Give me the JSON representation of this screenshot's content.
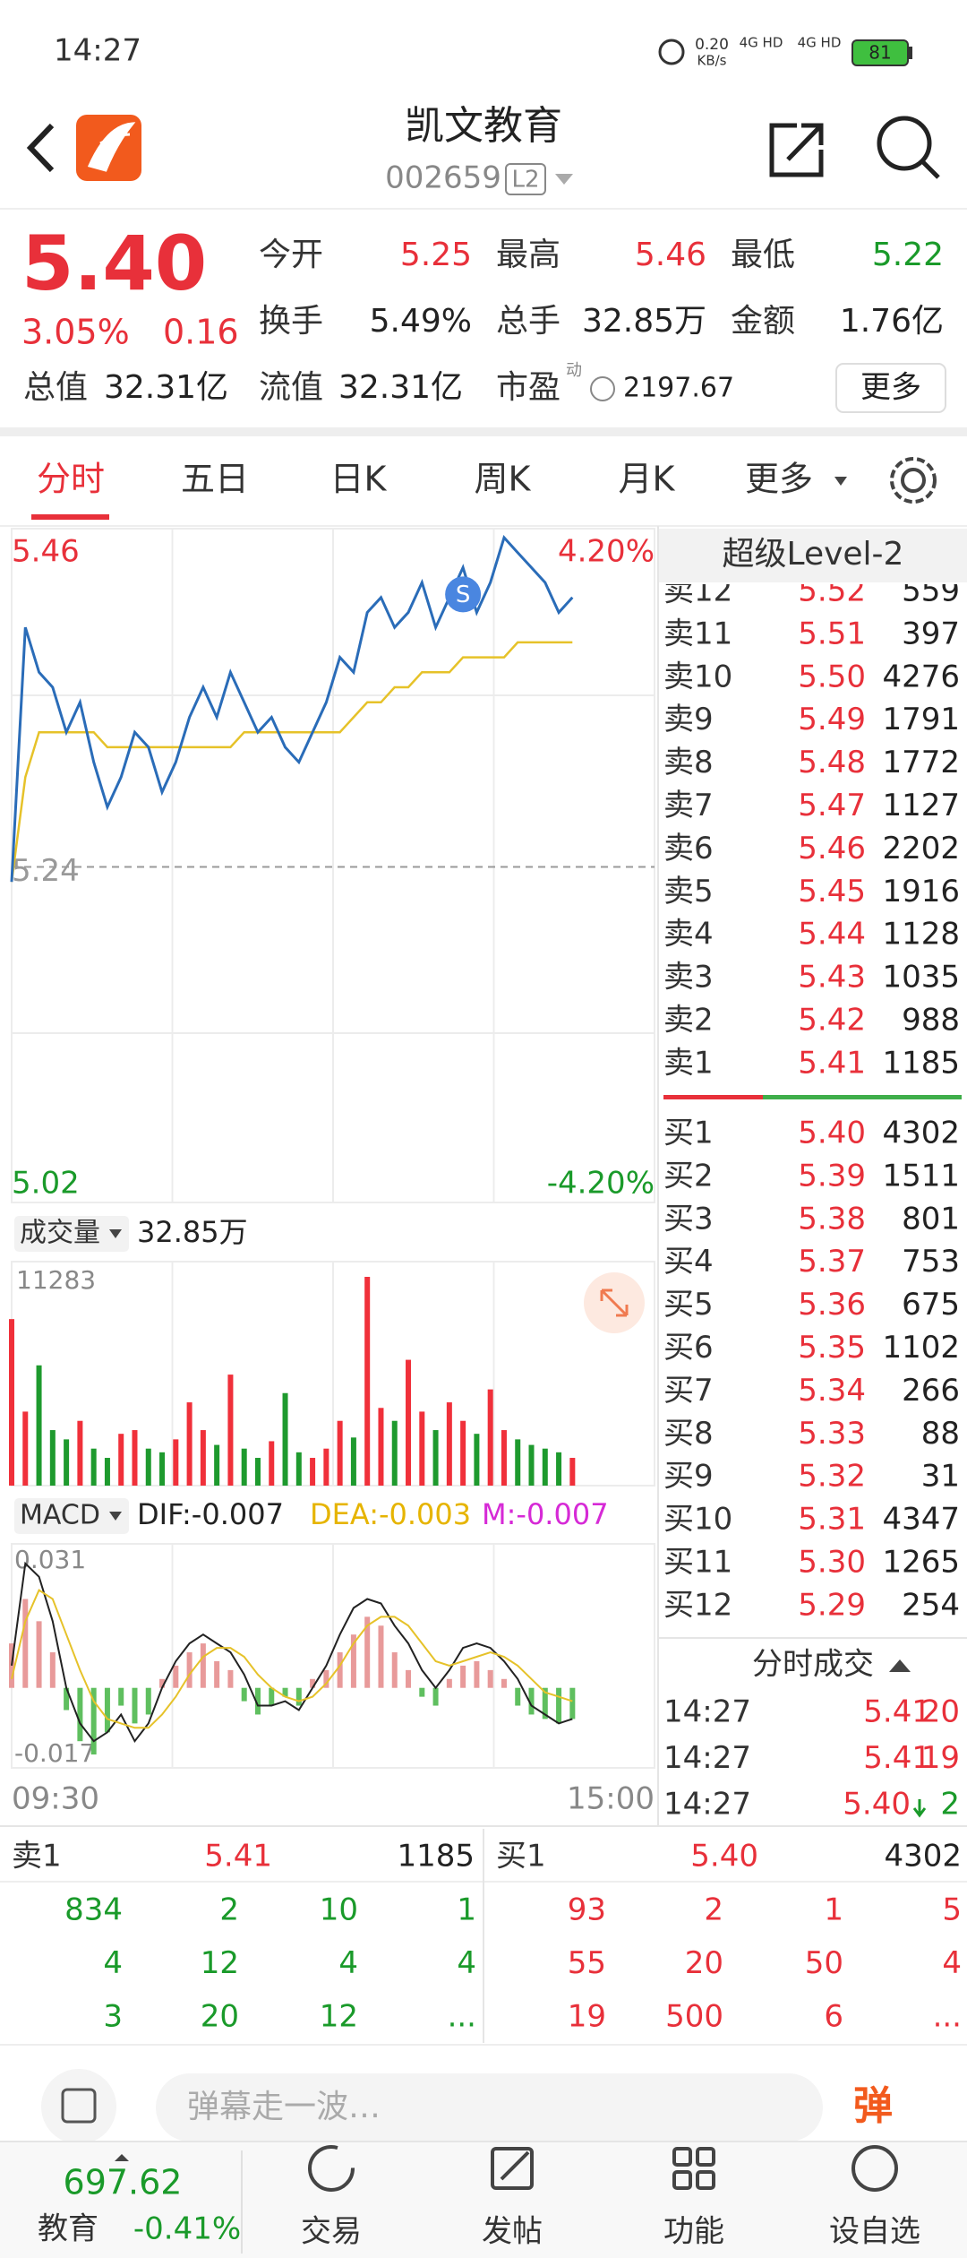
{
  "status_bar": {
    "time": "14:27",
    "speed": "0.20",
    "speed_unit": "KB/s",
    "network1": "4G HD",
    "network2": "4G HD",
    "battery": "81"
  },
  "header": {
    "title": "凯文教育",
    "code": "002659",
    "level": "L2"
  },
  "quote": {
    "price": "5.40",
    "change_pct": "3.05%",
    "change": "0.16",
    "pe_tag": "动",
    "more": "更多",
    "fields": [
      {
        "label": "今开",
        "value": "5.25",
        "color": "#e8303a"
      },
      {
        "label": "最高",
        "value": "5.46",
        "color": "#e8303a"
      },
      {
        "label": "最低",
        "value": "5.22",
        "color": "#1a9a2a"
      },
      {
        "label": "换手",
        "value": "5.49%",
        "color": "#222222"
      },
      {
        "label": "总手",
        "value": "32.85万",
        "color": "#222222"
      },
      {
        "label": "金额",
        "value": "1.76亿",
        "color": "#222222"
      },
      {
        "label": "总值",
        "value": "32.31亿",
        "color": "#222222"
      },
      {
        "label": "流值",
        "value": "32.31亿",
        "color": "#222222"
      },
      {
        "label": "市盈",
        "value": "2197.67",
        "color": "#222222"
      }
    ]
  },
  "tabs": [
    "分时",
    "五日",
    "日K",
    "周K",
    "月K",
    "更多"
  ],
  "intraday": {
    "ylim": [
      5.02,
      5.46
    ],
    "ref": 5.24,
    "top_pct": "4.20%",
    "bottom_pct": "-4.20%",
    "sell_marker": "S",
    "price": [
      5.23,
      5.4,
      5.37,
      5.36,
      5.33,
      5.35,
      5.31,
      5.28,
      5.3,
      5.33,
      5.32,
      5.29,
      5.31,
      5.34,
      5.36,
      5.34,
      5.37,
      5.35,
      5.33,
      5.34,
      5.32,
      5.31,
      5.33,
      5.35,
      5.38,
      5.37,
      5.41,
      5.42,
      5.4,
      5.41,
      5.43,
      5.4,
      5.42,
      5.44,
      5.41,
      5.43,
      5.46,
      5.45,
      5.44,
      5.43,
      5.41,
      5.42
    ],
    "avg": [
      5.23,
      5.3,
      5.33,
      5.33,
      5.33,
      5.33,
      5.33,
      5.32,
      5.32,
      5.32,
      5.32,
      5.32,
      5.32,
      5.32,
      5.32,
      5.32,
      5.32,
      5.33,
      5.33,
      5.33,
      5.33,
      5.33,
      5.33,
      5.33,
      5.33,
      5.34,
      5.35,
      5.35,
      5.36,
      5.36,
      5.37,
      5.37,
      5.37,
      5.38,
      5.38,
      5.38,
      5.38,
      5.39,
      5.39,
      5.39,
      5.39,
      5.39
    ]
  },
  "volume": {
    "label": "成交量",
    "total": "32.85万",
    "max": 11283,
    "values": [
      9000,
      4000,
      6500,
      3000,
      2500,
      3500,
      2000,
      1500,
      2800,
      3000,
      2000,
      1800,
      2500,
      4500,
      3000,
      2200,
      6000,
      2000,
      1500,
      2400,
      5000,
      1800,
      1500,
      2000,
      3500,
      2600,
      11283,
      4200,
      3500,
      6800,
      4000,
      3000,
      4500,
      3500,
      2800,
      5200,
      3000,
      2500,
      2200,
      2000,
      1800,
      1500
    ]
  },
  "macd": {
    "label": "MACD",
    "dif": "DIF:-0.007",
    "dea": "DEA:-0.003",
    "m": "M:-0.007",
    "ylim": [
      -0.017,
      0.031
    ],
    "hist": [
      0.01,
      0.02,
      0.015,
      0.008,
      -0.005,
      -0.012,
      -0.015,
      -0.01,
      -0.004,
      -0.008,
      -0.006,
      0.002,
      0.005,
      0.008,
      0.01,
      0.006,
      0.004,
      -0.003,
      -0.006,
      -0.004,
      -0.002,
      -0.004,
      0.002,
      0.004,
      0.008,
      0.012,
      0.016,
      0.014,
      0.008,
      0.004,
      -0.002,
      -0.004,
      0.002,
      0.005,
      0.006,
      0.004,
      0.002,
      -0.004,
      -0.006,
      -0.007,
      -0.008,
      -0.007
    ],
    "dif_line": [
      0.005,
      0.028,
      0.025,
      0.015,
      0.0,
      -0.008,
      -0.012,
      -0.01,
      -0.006,
      -0.012,
      -0.008,
      0.0,
      0.006,
      0.01,
      0.012,
      0.01,
      0.008,
      0.003,
      -0.004,
      -0.004,
      -0.003,
      -0.005,
      0.0,
      0.005,
      0.012,
      0.018,
      0.02,
      0.019,
      0.014,
      0.01,
      0.004,
      0.0,
      0.004,
      0.009,
      0.01,
      0.009,
      0.006,
      0.002,
      -0.004,
      -0.006,
      -0.008,
      -0.007
    ],
    "dea_line": [
      0.002,
      0.015,
      0.022,
      0.02,
      0.012,
      0.004,
      -0.003,
      -0.007,
      -0.008,
      -0.009,
      -0.009,
      -0.006,
      -0.002,
      0.003,
      0.007,
      0.009,
      0.009,
      0.007,
      0.003,
      0.0,
      -0.002,
      -0.003,
      -0.002,
      0.001,
      0.005,
      0.01,
      0.014,
      0.016,
      0.016,
      0.014,
      0.01,
      0.006,
      0.005,
      0.006,
      0.007,
      0.008,
      0.007,
      0.005,
      0.002,
      -0.001,
      -0.002,
      -0.003
    ]
  },
  "time_axis": [
    "09:30",
    "15:00"
  ],
  "level2": {
    "title": "超级Level-2",
    "asks": [
      {
        "label": "卖12",
        "price": "5.52",
        "vol": "559"
      },
      {
        "label": "卖11",
        "price": "5.51",
        "vol": "397"
      },
      {
        "label": "卖10",
        "price": "5.50",
        "vol": "4276"
      },
      {
        "label": "卖9",
        "price": "5.49",
        "vol": "1791"
      },
      {
        "label": "卖8",
        "price": "5.48",
        "vol": "1772"
      },
      {
        "label": "卖7",
        "price": "5.47",
        "vol": "1127"
      },
      {
        "label": "卖6",
        "price": "5.46",
        "vol": "2202"
      },
      {
        "label": "卖5",
        "price": "5.45",
        "vol": "1916"
      },
      {
        "label": "卖4",
        "price": "5.44",
        "vol": "1128"
      },
      {
        "label": "卖3",
        "price": "5.43",
        "vol": "1035"
      },
      {
        "label": "卖2",
        "price": "5.42",
        "vol": "988"
      },
      {
        "label": "卖1",
        "price": "5.41",
        "vol": "1185"
      }
    ],
    "bids": [
      {
        "label": "买1",
        "price": "5.40",
        "vol": "4302"
      },
      {
        "label": "买2",
        "price": "5.39",
        "vol": "1511"
      },
      {
        "label": "买3",
        "price": "5.38",
        "vol": "801"
      },
      {
        "label": "买4",
        "price": "5.37",
        "vol": "753"
      },
      {
        "label": "买5",
        "price": "5.36",
        "vol": "675"
      },
      {
        "label": "买6",
        "price": "5.35",
        "vol": "1102"
      },
      {
        "label": "买7",
        "price": "5.34",
        "vol": "266"
      },
      {
        "label": "买8",
        "price": "5.33",
        "vol": "88"
      },
      {
        "label": "买9",
        "price": "5.32",
        "vol": "31"
      },
      {
        "label": "买10",
        "price": "5.31",
        "vol": "4347"
      },
      {
        "label": "买11",
        "price": "5.30",
        "vol": "1265"
      },
      {
        "label": "买12",
        "price": "5.29",
        "vol": "254"
      }
    ],
    "ticks_title": "分时成交",
    "ticks": [
      {
        "time": "14:27",
        "price": "5.41",
        "vol": "20",
        "color": "#e8303a"
      },
      {
        "time": "14:27",
        "price": "5.41",
        "vol": "19",
        "color": "#e8303a"
      },
      {
        "time": "14:27",
        "price": "5.40",
        "vol": "2",
        "color": "#1a9a2a"
      }
    ]
  },
  "queue": {
    "ask": {
      "label": "卖1",
      "price": "5.41",
      "vol": "1185",
      "orders": [
        [
          "834",
          "2",
          "10",
          "1"
        ],
        [
          "4",
          "12",
          "4",
          "4"
        ],
        [
          "3",
          "20",
          "12",
          "..."
        ]
      ]
    },
    "bid": {
      "label": "买1",
      "price": "5.40",
      "vol": "4302",
      "orders": [
        [
          "93",
          "2",
          "1",
          "5"
        ],
        [
          "55",
          "20",
          "50",
          "4"
        ],
        [
          "19",
          "500",
          "6",
          "..."
        ]
      ]
    }
  },
  "comment": {
    "placeholder": "弹幕走一波…",
    "button": "弹"
  },
  "nav": {
    "index_value": "697.62",
    "index_name": "教育",
    "index_change": "-0.41%",
    "items": [
      "交易",
      "发帖",
      "功能",
      "设自选"
    ]
  }
}
